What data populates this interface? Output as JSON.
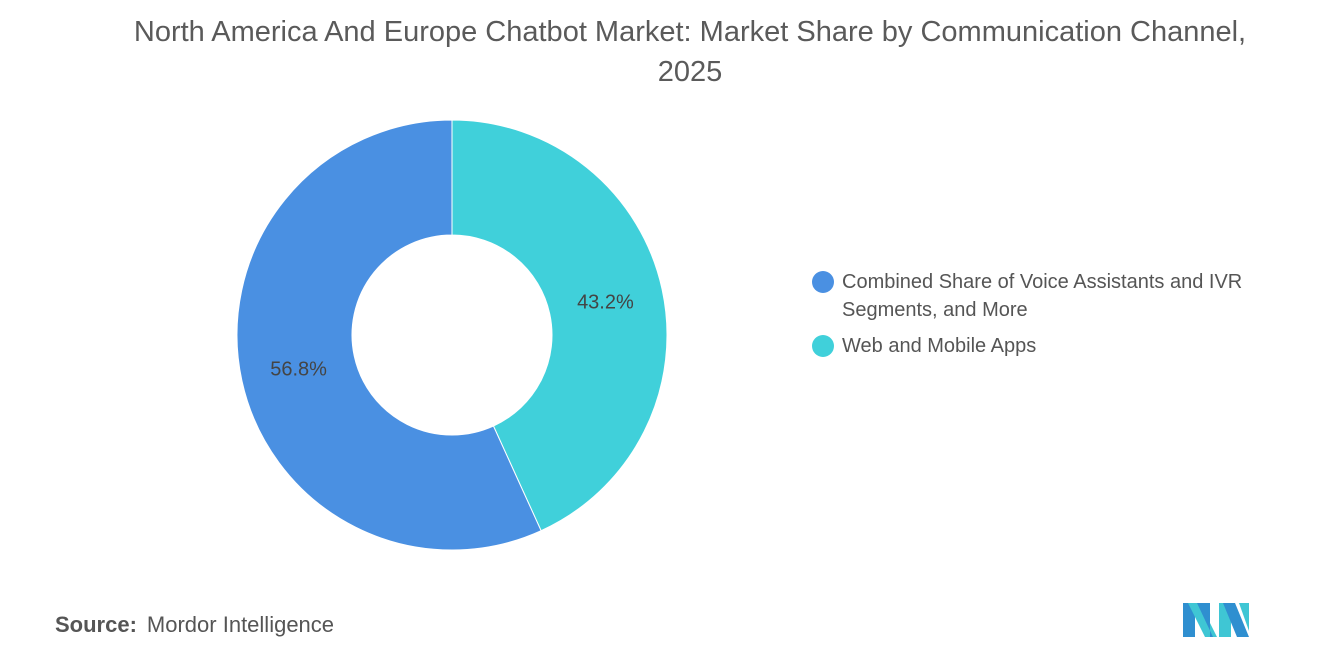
{
  "chart_data": {
    "type": "pie",
    "donut": true,
    "title": "North America And Europe Chatbot Market: Market Share by Communication Channel, 2025",
    "series": [
      {
        "name": "Web and Mobile Apps",
        "value": 43.2,
        "label": "43.2%",
        "color": "#40d0da"
      },
      {
        "name": "Combined Share of Voice Assistants and IVR Segments, and More",
        "value": 56.8,
        "label": "56.8%",
        "color": "#4a90e2"
      }
    ],
    "start_angle": "12 o'clock, clockwise",
    "legend_placement": "right",
    "legend": [
      {
        "label": "Combined Share of Voice Assistants and IVR Segments, and More",
        "color": "#4a90e2"
      },
      {
        "label": "Web and Mobile Apps",
        "color": "#40d0da"
      }
    ]
  },
  "source": {
    "label": "Source:",
    "value": "Mordor Intelligence"
  },
  "logo": {
    "name": "mordor-intelligence-logo"
  }
}
